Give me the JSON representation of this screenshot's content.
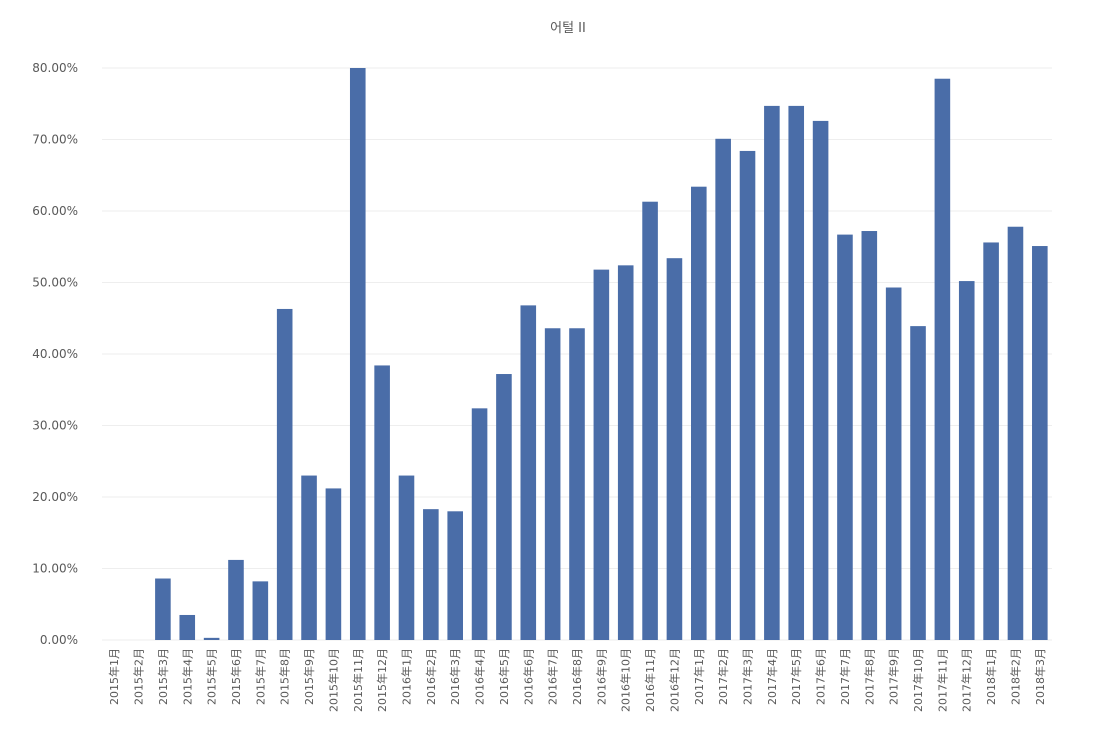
{
  "chart_data": {
    "type": "bar",
    "title": "어털 II",
    "xlabel": "",
    "ylabel": "",
    "ylim": [
      0,
      80
    ],
    "y_ticks": [
      0,
      10,
      20,
      30,
      40,
      50,
      60,
      70,
      80
    ],
    "y_tick_labels": [
      "0.00%",
      "10.00%",
      "20.00%",
      "30.00%",
      "40.00%",
      "50.00%",
      "60.00%",
      "70.00%",
      "80.00%"
    ],
    "grid": true,
    "legend": "none",
    "bar_color": "#4a6da8",
    "categories": [
      "2015年1月",
      "2015年2月",
      "2015年3月",
      "2015年4月",
      "2015年5月",
      "2015年6月",
      "2015年7月",
      "2015年8月",
      "2015年9月",
      "2015年10月",
      "2015年11月",
      "2015年12月",
      "2016年1月",
      "2016年2月",
      "2016年3月",
      "2016年4月",
      "2016年5月",
      "2016年6月",
      "2016年7月",
      "2016年8月",
      "2016年9月",
      "2016年10月",
      "2016年11月",
      "2016年12月",
      "2017年1月",
      "2017年2月",
      "2017年3月",
      "2017年4月",
      "2017年5月",
      "2017年6月",
      "2017年7月",
      "2017年8月",
      "2017年9月",
      "2017年10月",
      "2017年11月",
      "2017年12月",
      "2018年1月",
      "2018年2月",
      "2018年3月"
    ],
    "values": [
      0,
      0,
      8.6,
      3.5,
      0.3,
      11.2,
      8.2,
      46.3,
      23.0,
      21.2,
      80.0,
      38.4,
      23.0,
      18.3,
      18.0,
      32.4,
      37.2,
      46.8,
      43.6,
      43.6,
      51.8,
      52.4,
      61.3,
      53.4,
      63.4,
      70.1,
      68.4,
      74.7,
      74.7,
      72.6,
      56.7,
      57.2,
      49.3,
      43.9,
      78.5,
      50.2,
      55.6,
      57.8,
      55.1
    ]
  }
}
